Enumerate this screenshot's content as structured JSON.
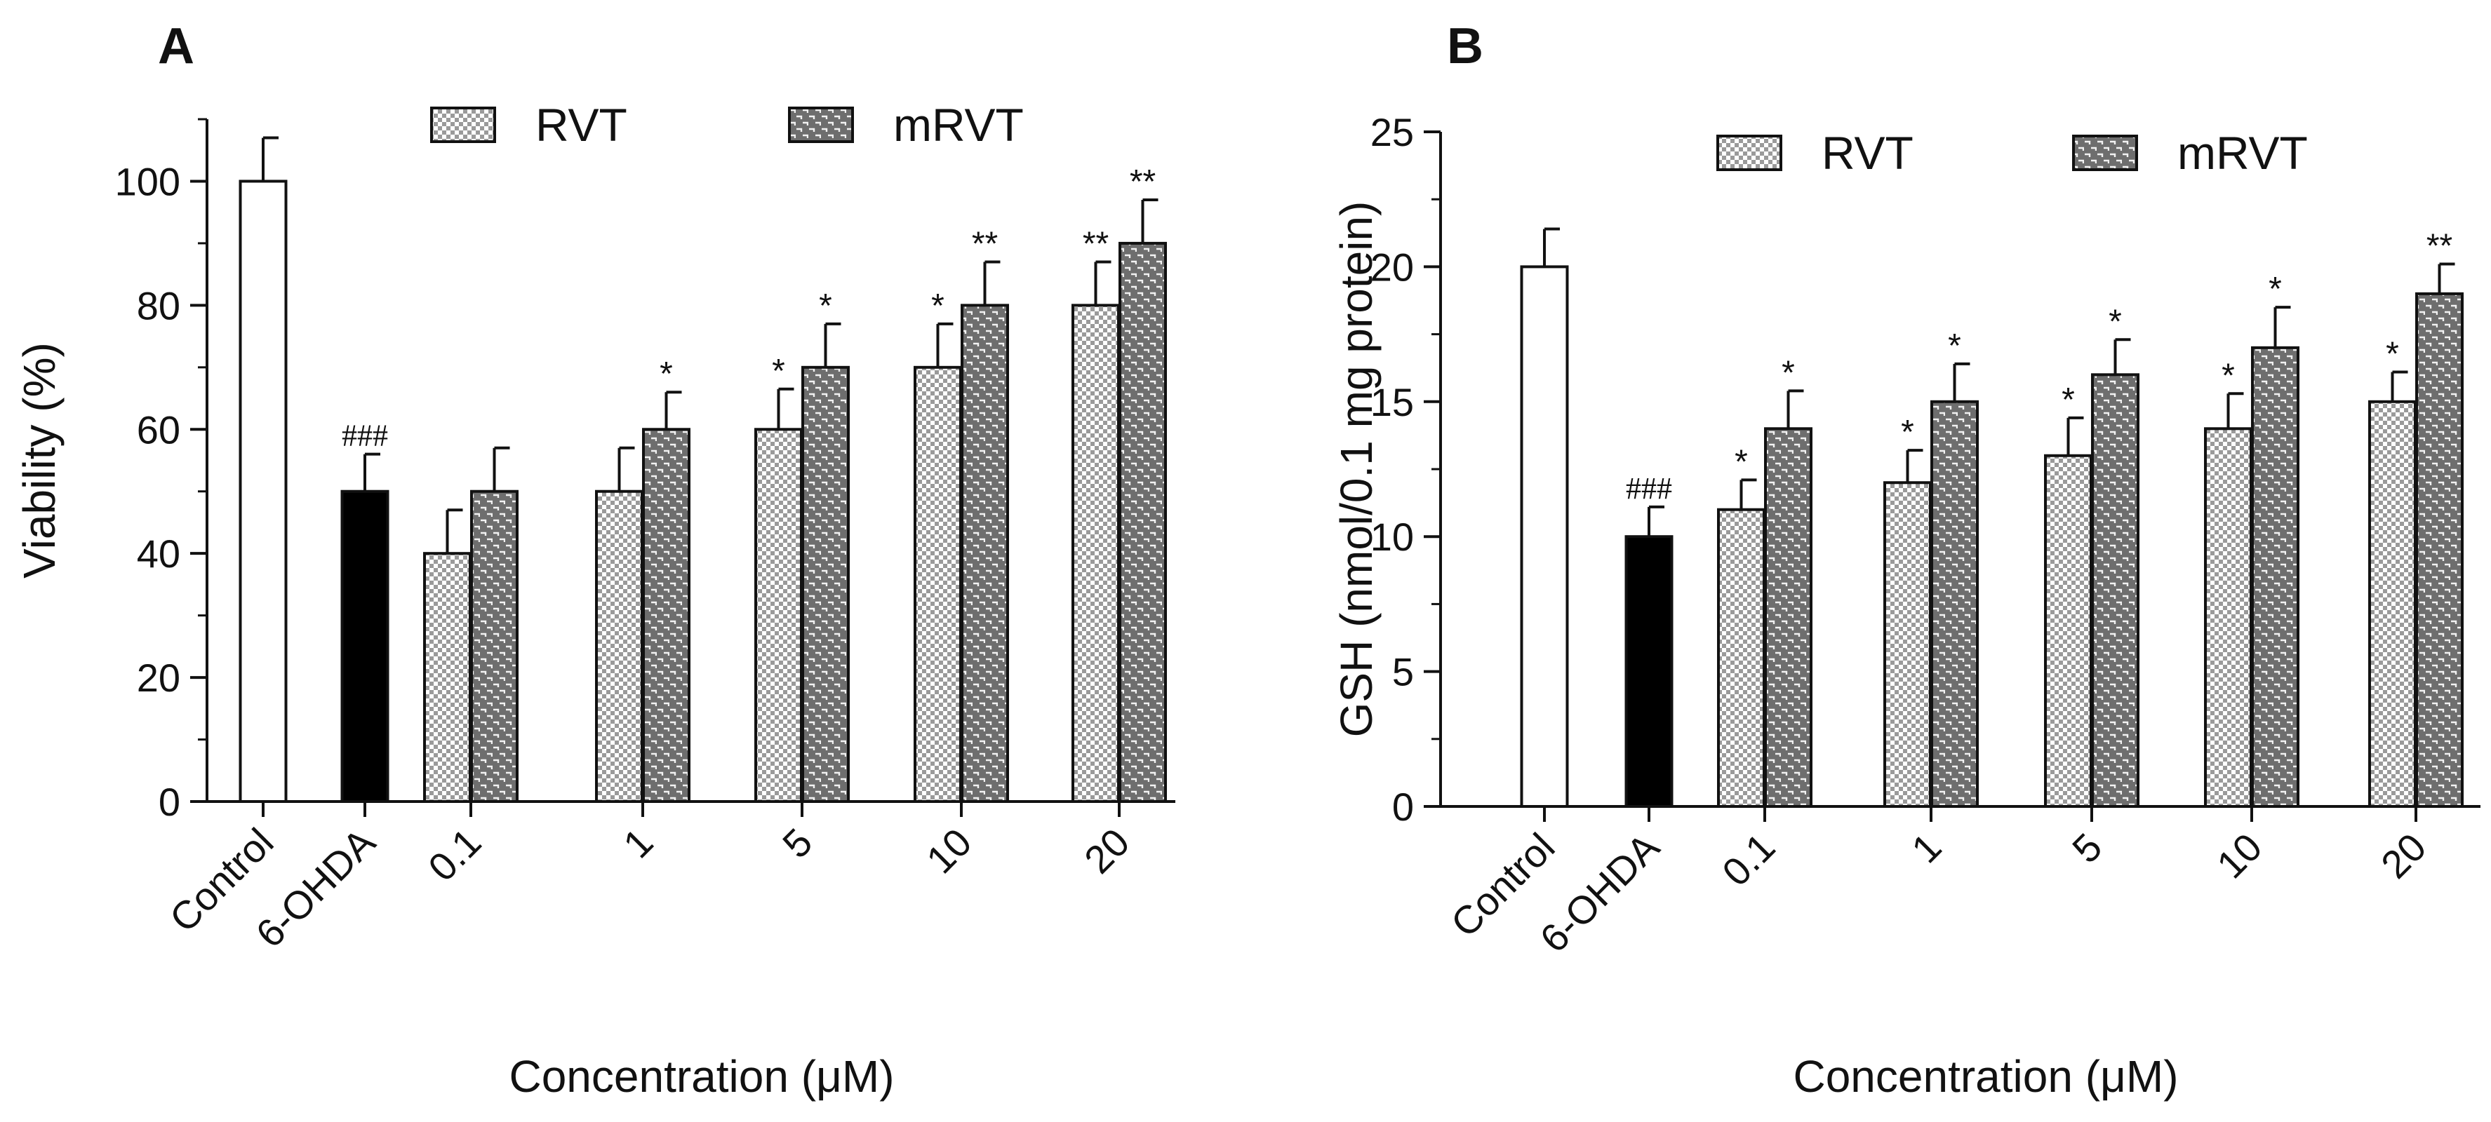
{
  "chart_data": [
    {
      "type": "bar",
      "panel": "A",
      "ylabel": "Viability (%)",
      "xlabel": "Concentration (μM)",
      "ylim": [
        0,
        110
      ],
      "yticks": [
        0,
        20,
        40,
        60,
        80,
        100
      ],
      "legend": [
        {
          "name": "RVT",
          "pattern": "checker"
        },
        {
          "name": "mRVT",
          "pattern": "brick"
        }
      ],
      "controls": [
        {
          "label": "Control",
          "value": 100,
          "error": 7,
          "fill": "white",
          "annotation": ""
        },
        {
          "label": "6-OHDA",
          "value": 50,
          "error": 6,
          "fill": "black",
          "annotation": "###"
        }
      ],
      "categories": [
        "0.1",
        "1",
        "5",
        "10",
        "20"
      ],
      "series": [
        {
          "name": "RVT",
          "values": [
            40,
            50,
            60,
            70,
            80
          ],
          "errors": [
            7,
            7,
            6.5,
            7,
            7
          ],
          "annotations": [
            "",
            "",
            "*",
            "*",
            "**"
          ]
        },
        {
          "name": "mRVT",
          "values": [
            50,
            60,
            70,
            80,
            90
          ],
          "errors": [
            7,
            6,
            7,
            7,
            7
          ],
          "annotations": [
            "",
            "*",
            "*",
            "**",
            "**"
          ]
        }
      ]
    },
    {
      "type": "bar",
      "panel": "B",
      "ylabel": "GSH (nmol/0.1 mg protein)",
      "xlabel": "Concentration (μM)",
      "ylim": [
        0,
        25
      ],
      "yticks": [
        0,
        5,
        10,
        15,
        20,
        25
      ],
      "legend": [
        {
          "name": "RVT",
          "pattern": "checker"
        },
        {
          "name": "mRVT",
          "pattern": "brick"
        }
      ],
      "controls": [
        {
          "label": "Control",
          "value": 20,
          "error": 1.4,
          "fill": "white",
          "annotation": ""
        },
        {
          "label": "6-OHDA",
          "value": 10,
          "error": 1.1,
          "fill": "black",
          "annotation": "###"
        }
      ],
      "categories": [
        "0.1",
        "1",
        "5",
        "10",
        "20"
      ],
      "series": [
        {
          "name": "RVT",
          "values": [
            11,
            12,
            13,
            14,
            15
          ],
          "errors": [
            1.1,
            1.2,
            1.4,
            1.3,
            1.1
          ],
          "annotations": [
            "*",
            "*",
            "*",
            "*",
            "*"
          ]
        },
        {
          "name": "mRVT",
          "values": [
            14,
            15,
            16,
            17,
            19
          ],
          "errors": [
            1.4,
            1.4,
            1.3,
            1.5,
            1.1
          ],
          "annotations": [
            "*",
            "*",
            "*",
            "*",
            "**"
          ]
        }
      ]
    }
  ]
}
